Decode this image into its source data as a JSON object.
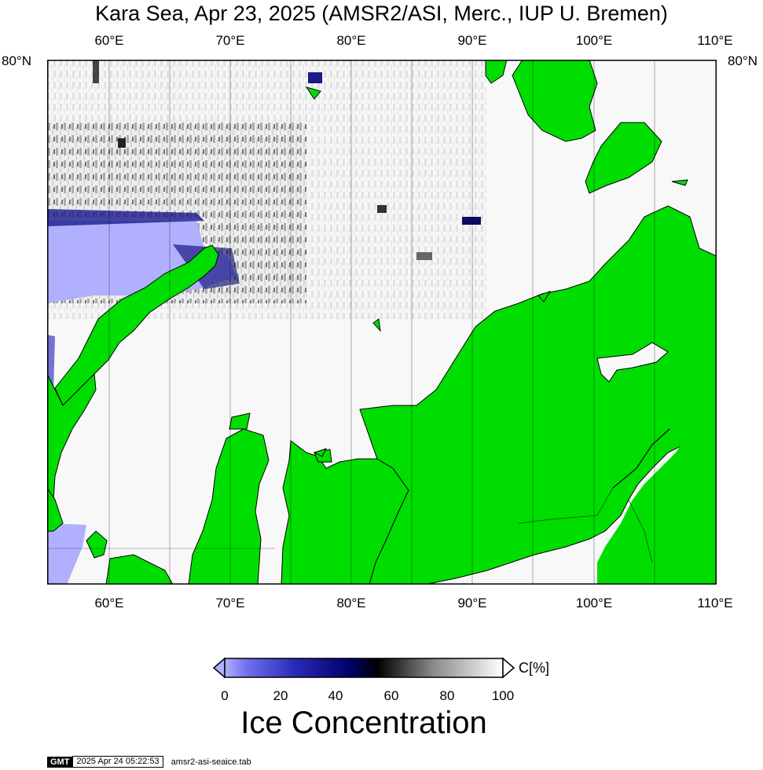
{
  "title": "Kara Sea, Apr 23, 2025 (AMSR2/ASI, Merc., IUP U. Bremen)",
  "axes": {
    "lon_labels": [
      "60°E",
      "70°E",
      "80°E",
      "90°E",
      "100°E",
      "110°E"
    ],
    "lat_label_left": "80°N",
    "lat_label_right": "80°N"
  },
  "colorbar": {
    "unit": "C[%]",
    "ticks": [
      "0",
      "20",
      "40",
      "60",
      "80",
      "100"
    ],
    "title": "Ice Concentration",
    "colors": {
      "low": "#b0b0ff",
      "mid_low": "#00006a",
      "mid": "#000000",
      "high": "#ffffff"
    }
  },
  "legend_colors": {
    "land": "#00dd00",
    "ice_full": "#f4f4f4",
    "open_water": "#b0b0ff",
    "border": "#000000"
  },
  "footer": {
    "logo": "GMT",
    "timestamp": "2025 Apr 24 05:22:53",
    "filename": "amsr2-asi-seaice.tab"
  }
}
